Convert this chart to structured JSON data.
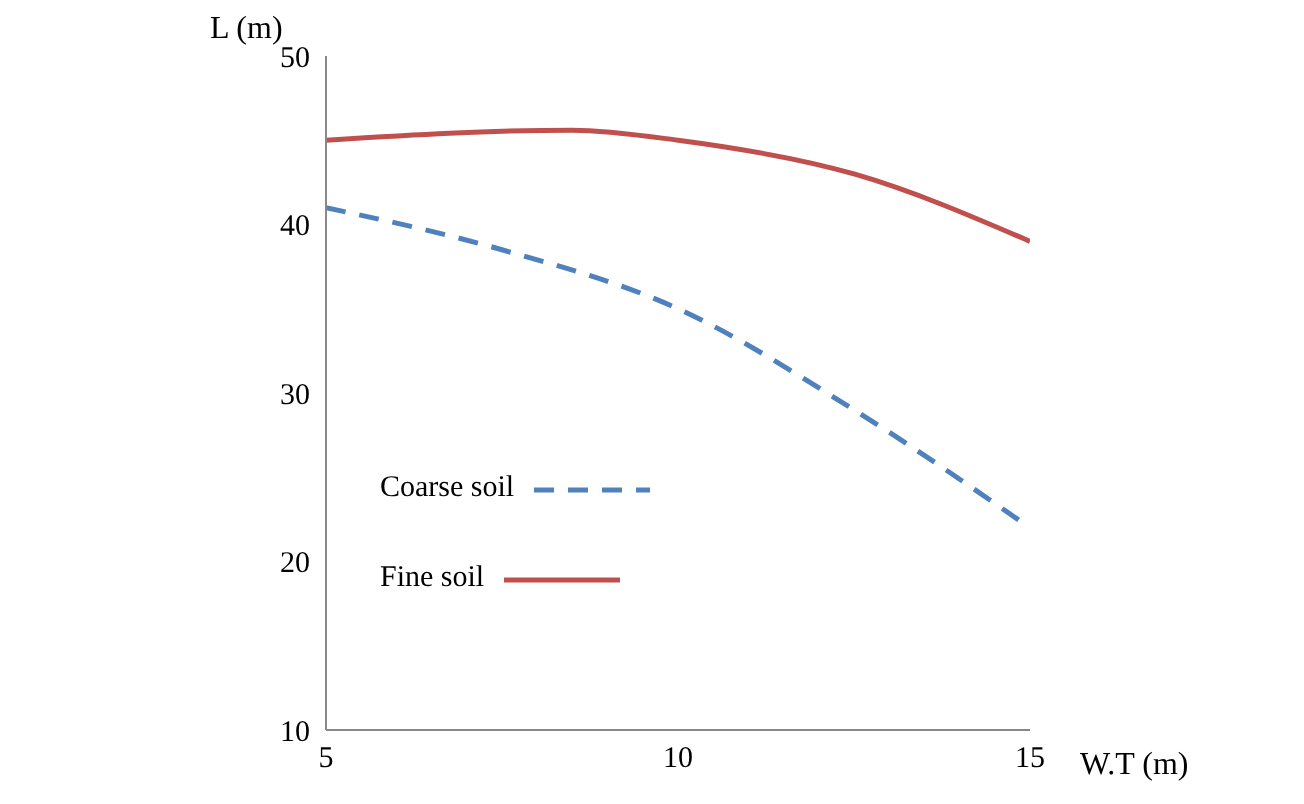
{
  "chart_data": {
    "type": "line",
    "xlabel": "W.T (m)",
    "ylabel": "L (m)",
    "xlim": [
      5,
      15
    ],
    "xticks": [
      5,
      10,
      15
    ],
    "ylim": [
      10,
      50
    ],
    "yticks": [
      10,
      20,
      30,
      40,
      50
    ],
    "legend": "left",
    "marker": "none",
    "series": [
      {
        "name": "Coarse soil",
        "color": "#4f81bd",
        "line_style": "dashed",
        "x": [
          5,
          7.5,
          10,
          12.5,
          15
        ],
        "values": [
          41,
          38.5,
          35,
          29,
          22
        ]
      },
      {
        "name": "Fine soil",
        "color": "#c0504d",
        "line_style": "solid",
        "x": [
          5,
          8.5,
          10,
          12.5,
          15
        ],
        "values": [
          45,
          45.6,
          45,
          43,
          39
        ]
      }
    ]
  }
}
